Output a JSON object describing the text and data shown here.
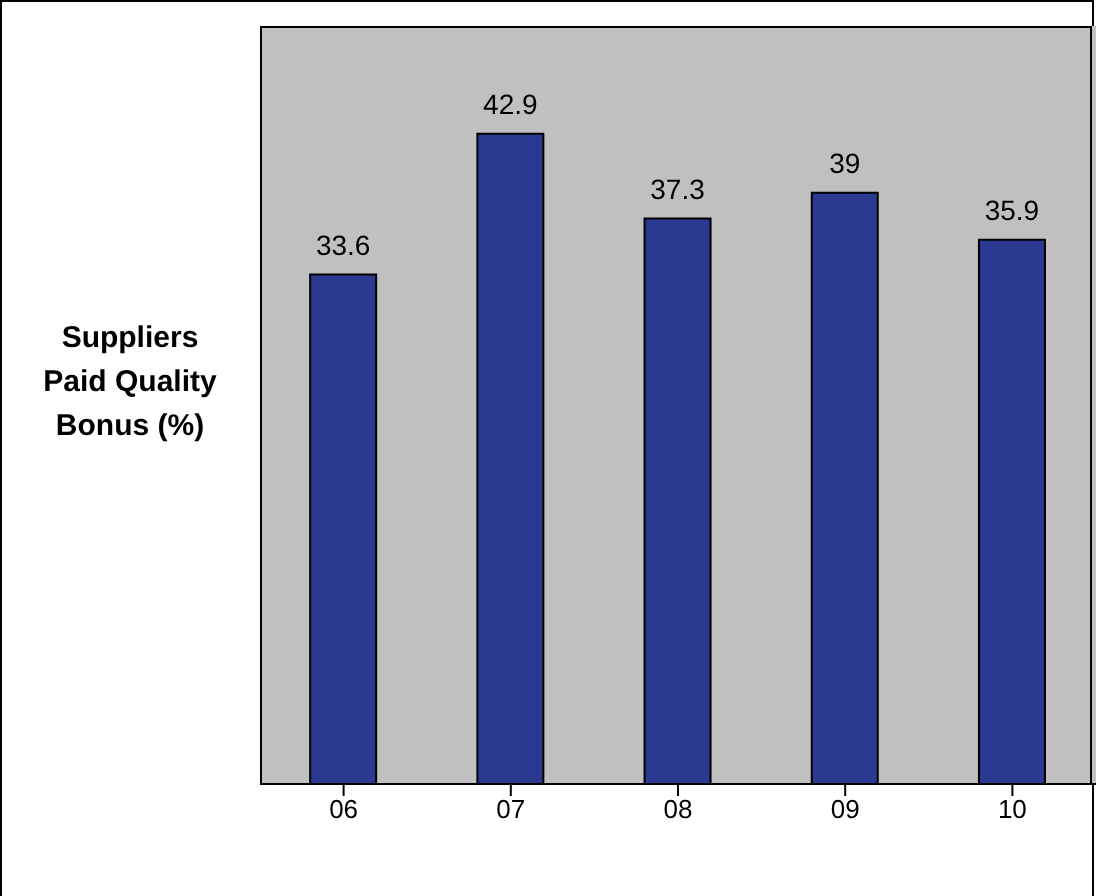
{
  "chart_data": {
    "type": "bar",
    "ylabel": "Suppliers Paid Quality Bonus (%)",
    "categories": [
      "06",
      "07",
      "08",
      "09",
      "10"
    ],
    "values": [
      33.6,
      42.9,
      37.3,
      39,
      35.9
    ],
    "color": "#2b3990",
    "ylim": [
      0,
      50
    ],
    "data_labels": true,
    "tick_labels": "x",
    "grid": false
  }
}
